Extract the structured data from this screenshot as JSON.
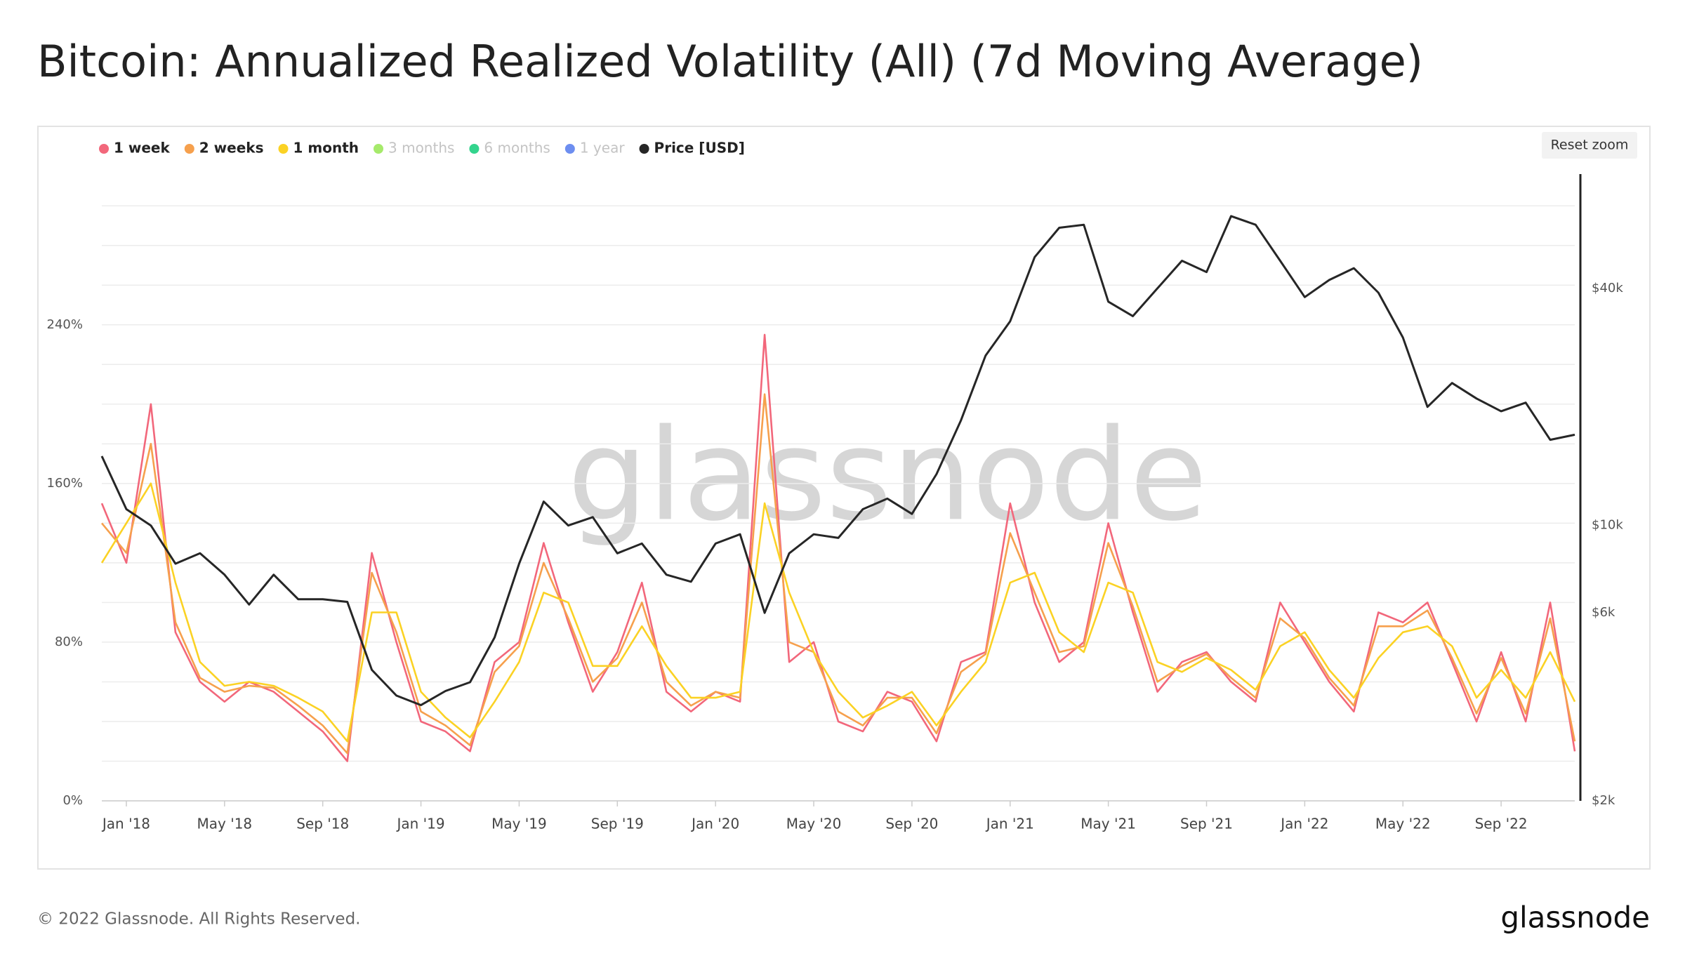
{
  "chart_data": {
    "type": "line",
    "title": "Bitcoin: Annualized Realized Volatility (All) (7d Moving Average)",
    "watermark": "glassnode",
    "reset_button": "Reset zoom",
    "footer": "© 2022 Glassnode. All Rights Reserved.",
    "brand": "glassnode",
    "x": [
      "2017-12",
      "2018-01",
      "2018-02",
      "2018-03",
      "2018-04",
      "2018-05",
      "2018-06",
      "2018-07",
      "2018-08",
      "2018-09",
      "2018-10",
      "2018-11",
      "2018-12",
      "2019-01",
      "2019-02",
      "2019-03",
      "2019-04",
      "2019-05",
      "2019-06",
      "2019-07",
      "2019-08",
      "2019-09",
      "2019-10",
      "2019-11",
      "2019-12",
      "2020-01",
      "2020-02",
      "2020-03",
      "2020-04",
      "2020-05",
      "2020-06",
      "2020-07",
      "2020-08",
      "2020-09",
      "2020-10",
      "2020-11",
      "2020-12",
      "2021-01",
      "2021-02",
      "2021-03",
      "2021-04",
      "2021-05",
      "2021-06",
      "2021-07",
      "2021-08",
      "2021-09",
      "2021-10",
      "2021-11",
      "2021-12",
      "2022-01",
      "2022-02",
      "2022-03",
      "2022-04",
      "2022-05",
      "2022-06",
      "2022-07",
      "2022-08",
      "2022-09",
      "2022-10",
      "2022-11",
      "2022-12"
    ],
    "xlim": [
      "2017-12",
      "2022-12"
    ],
    "xticks": [
      {
        "value": "2018-01",
        "label": "Jan '18"
      },
      {
        "value": "2018-05",
        "label": "May '18"
      },
      {
        "value": "2018-09",
        "label": "Sep '18"
      },
      {
        "value": "2019-01",
        "label": "Jan '19"
      },
      {
        "value": "2019-05",
        "label": "May '19"
      },
      {
        "value": "2019-09",
        "label": "Sep '19"
      },
      {
        "value": "2020-01",
        "label": "Jan '20"
      },
      {
        "value": "2020-05",
        "label": "May '20"
      },
      {
        "value": "2020-09",
        "label": "Sep '20"
      },
      {
        "value": "2021-01",
        "label": "Jan '21"
      },
      {
        "value": "2021-05",
        "label": "May '21"
      },
      {
        "value": "2021-09",
        "label": "Sep '21"
      },
      {
        "value": "2022-01",
        "label": "Jan '22"
      },
      {
        "value": "2022-05",
        "label": "May '22"
      },
      {
        "value": "2022-09",
        "label": "Sep '22"
      }
    ],
    "ylim": [
      0,
      316
    ],
    "yticks": [
      {
        "value": 0,
        "label": "0%"
      },
      {
        "value": 80,
        "label": "80%"
      },
      {
        "value": 160,
        "label": "160%"
      },
      {
        "value": 240,
        "label": "240%"
      }
    ],
    "ygrid": [
      0,
      20,
      40,
      60,
      80,
      100,
      120,
      140,
      160,
      180,
      200,
      220,
      240,
      260,
      280,
      300
    ],
    "y2lim": [
      2000,
      78000
    ],
    "y2log": true,
    "y2ticks": [
      {
        "value": 2000,
        "label": "$2k"
      },
      {
        "value": 6000,
        "label": "$6k"
      },
      {
        "value": 10000,
        "label": "$10k"
      },
      {
        "value": 40000,
        "label": "$40k"
      }
    ],
    "series": [
      {
        "name": "1 week",
        "color": "#f2677b",
        "values": [
          150,
          120,
          200,
          85,
          60,
          50,
          60,
          55,
          45,
          35,
          20,
          125,
          80,
          40,
          35,
          25,
          70,
          80,
          130,
          90,
          55,
          75,
          110,
          55,
          45,
          55,
          50,
          235,
          70,
          80,
          40,
          35,
          55,
          50,
          30,
          70,
          75,
          150,
          100,
          70,
          80,
          140,
          95,
          55,
          70,
          75,
          60,
          50,
          100,
          80,
          60,
          45,
          95,
          90,
          100,
          70,
          40,
          75,
          40,
          100,
          25
        ]
      },
      {
        "name": "2 weeks",
        "color": "#f6a04d",
        "values": [
          140,
          125,
          180,
          90,
          62,
          55,
          58,
          57,
          48,
          38,
          24,
          115,
          85,
          45,
          38,
          28,
          65,
          78,
          120,
          92,
          60,
          72,
          100,
          60,
          48,
          55,
          52,
          205,
          80,
          75,
          45,
          38,
          52,
          52,
          34,
          65,
          74,
          135,
          105,
          75,
          78,
          130,
          98,
          60,
          68,
          74,
          62,
          52,
          92,
          82,
          62,
          48,
          88,
          88,
          96,
          72,
          44,
          72,
          44,
          92,
          30
        ]
      },
      {
        "name": "1 month",
        "color": "#fbd224",
        "values": [
          120,
          140,
          160,
          110,
          70,
          58,
          60,
          58,
          52,
          45,
          30,
          95,
          95,
          55,
          42,
          32,
          50,
          70,
          105,
          100,
          68,
          68,
          88,
          68,
          52,
          52,
          55,
          150,
          105,
          75,
          55,
          42,
          48,
          55,
          38,
          55,
          70,
          110,
          115,
          85,
          75,
          110,
          105,
          70,
          65,
          72,
          66,
          56,
          78,
          85,
          66,
          52,
          72,
          85,
          88,
          78,
          52,
          66,
          52,
          75,
          50
        ]
      },
      {
        "name": "Price [USD]",
        "color": "#262626",
        "axis": "y2",
        "values": [
          15000,
          11000,
          10000,
          8000,
          8500,
          7500,
          6300,
          7500,
          6500,
          6500,
          6400,
          4300,
          3700,
          3500,
          3800,
          4000,
          5200,
          8000,
          11500,
          10000,
          10500,
          8500,
          9000,
          7500,
          7200,
          9000,
          9500,
          6000,
          8500,
          9500,
          9300,
          11000,
          11700,
          10700,
          13500,
          18500,
          27000,
          33000,
          48000,
          57000,
          58000,
          37000,
          34000,
          40000,
          47000,
          44000,
          61000,
          58000,
          47000,
          38000,
          42000,
          45000,
          39000,
          30000,
          20000,
          23000,
          21000,
          19500,
          20500,
          16500,
          17000
        ]
      }
    ],
    "hidden_series": [
      {
        "name": "3 months",
        "color": "#a6ea6b"
      },
      {
        "name": "6 months",
        "color": "#33d48d"
      },
      {
        "name": "1 year",
        "color": "#6d8ef0"
      }
    ],
    "grid": true
  }
}
